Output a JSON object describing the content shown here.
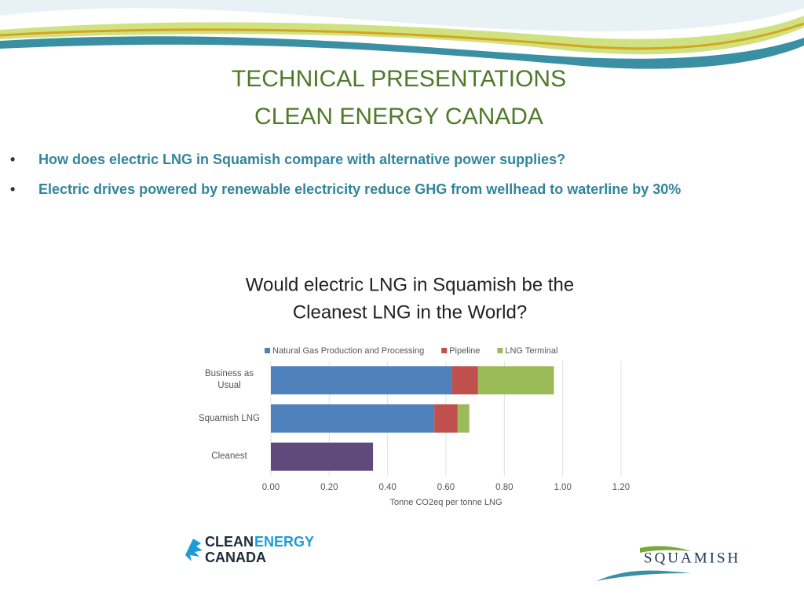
{
  "header": {
    "title": [
      "TECHNICAL PRESENTATIONS",
      "CLEAN ENERGY CANADA"
    ]
  },
  "bullets": [
    "How does electric LNG in Squamish compare with alternative power supplies?",
    "Electric drives powered by renewable electricity reduce GHG from wellhead to waterline by 30%"
  ],
  "chart_data": {
    "type": "stacked-barh",
    "title": [
      "Would electric LNG in Squamish be the",
      "Cleanest LNG in the World?"
    ],
    "categories": [
      "Business as Usual",
      "Squamish LNG",
      "Cleanest"
    ],
    "series": [
      {
        "name": "Natural Gas Production and Processing",
        "color": "#4f81bd",
        "point_colors": [
          "#4f81bd",
          "#4f81bd",
          "#604a7b"
        ],
        "values": [
          0.62,
          0.56,
          0.35
        ]
      },
      {
        "name": "Pipeline",
        "color": "#c0504d",
        "values": [
          0.09,
          0.08,
          null
        ]
      },
      {
        "name": "LNG Terminal",
        "color": "#9bbb59",
        "values": [
          0.26,
          0.04,
          null
        ]
      }
    ],
    "xlim": [
      0,
      1.2
    ],
    "xticks": [
      {
        "value": 0,
        "label": "0.00"
      },
      {
        "value": 0.2,
        "label": "0.20"
      },
      {
        "value": 0.4,
        "label": "0.40"
      },
      {
        "value": 0.6,
        "label": "0.60"
      },
      {
        "value": 0.8,
        "label": "0.80"
      },
      {
        "value": 1,
        "label": "1.00"
      },
      {
        "value": 1.2,
        "label": "1.20"
      }
    ],
    "xlabel": "Tonne CO2eq per tonne LNG",
    "legend": "top"
  },
  "logos": {
    "clean_energy_canada": [
      "CLEAN",
      "ENERGY",
      "CANADA"
    ],
    "squamish": "SQUAMISH"
  }
}
